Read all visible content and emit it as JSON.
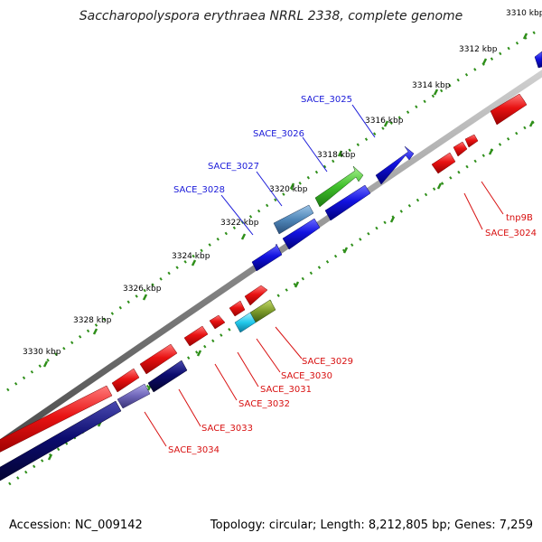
{
  "title": "Saccharopolyspora erythraea NRRL 2338, complete genome",
  "footer": {
    "accession": "Accession: NC_009142",
    "summary": "Topology: circular; Length: 8,212,805 bp; Genes: 7,259"
  },
  "tick_labels": [
    "3310 kbp",
    "3312 kbp",
    "3314 kbp",
    "3316 kbp",
    "3318 kbp",
    "3320 kbp",
    "3322 kbp",
    "3324 kbp",
    "3326 kbp",
    "3328 kbp",
    "3330 kbp"
  ],
  "genes": [
    {
      "name": "SACE_3025",
      "color": "#1a1ad9"
    },
    {
      "name": "SACE_3026",
      "color": "#1a1ad9"
    },
    {
      "name": "SACE_3027",
      "color": "#1a1ad9"
    },
    {
      "name": "SACE_3028",
      "color": "#1a1ad9"
    },
    {
      "name": "tnp9B",
      "color": "#d81010"
    },
    {
      "name": "SACE_3024",
      "color": "#d81010"
    },
    {
      "name": "SACE_3029",
      "color": "#d81010"
    },
    {
      "name": "SACE_3030",
      "color": "#d81010"
    },
    {
      "name": "SACE_3031",
      "color": "#d81010"
    },
    {
      "name": "SACE_3032",
      "color": "#d81010"
    },
    {
      "name": "SACE_3033",
      "color": "#d81010"
    },
    {
      "name": "SACE_3034",
      "color": "#d81010"
    }
  ],
  "colors": {
    "backbone": "#8c8c8c",
    "forward_strand": "#e81212",
    "reverse_strand": "#0c0cd8",
    "dark_blue": "#0b0b6e",
    "green": "#3fbf2a",
    "steel_blue": "#4f86b8",
    "cyan": "#22c8ea",
    "olive": "#7c9a2a",
    "purple": "#6e65b8",
    "tick_green": "#2f8f1a"
  }
}
